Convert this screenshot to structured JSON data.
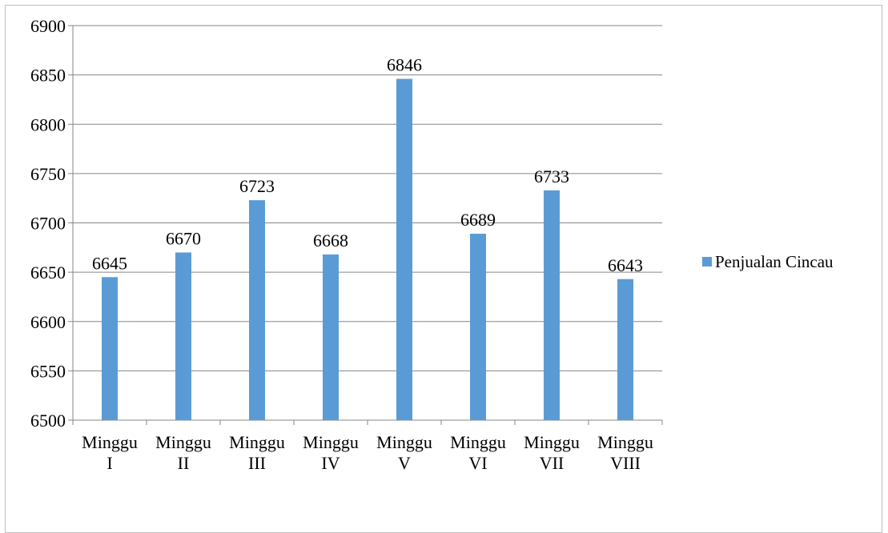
{
  "chart_data": {
    "type": "bar",
    "categories": [
      [
        "Minggu",
        "I"
      ],
      [
        "Minggu",
        "II"
      ],
      [
        "Minggu",
        "III"
      ],
      [
        "Minggu",
        "IV"
      ],
      [
        "Minggu",
        "V"
      ],
      [
        "Minggu",
        "VI"
      ],
      [
        "Minggu",
        "VII"
      ],
      [
        "Minggu",
        "VIII"
      ]
    ],
    "series": [
      {
        "name": "Penjualan Cincau",
        "values": [
          6645,
          6670,
          6723,
          6668,
          6846,
          6689,
          6733,
          6643
        ],
        "color": "#5b9bd5"
      }
    ],
    "ylim": [
      6500,
      6900
    ],
    "yticks": [
      6500,
      6550,
      6600,
      6650,
      6700,
      6750,
      6800,
      6850,
      6900
    ],
    "grid": true,
    "data_labels": true,
    "legend_position": "right"
  }
}
